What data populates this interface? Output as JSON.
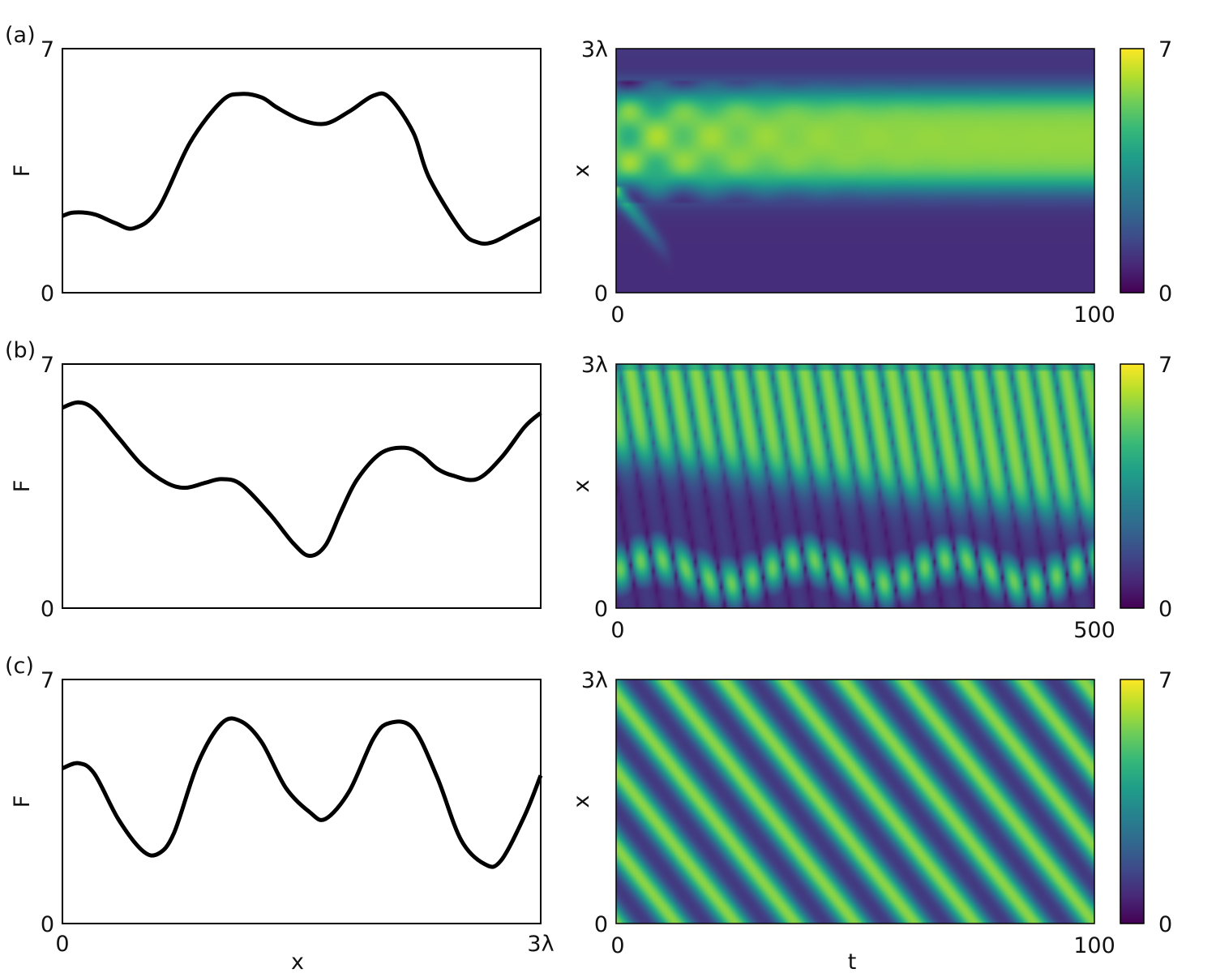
{
  "colormap": {
    "name": "viridis",
    "min": 0,
    "max": 7
  },
  "colors": {
    "line": "#000000",
    "frame": "#000000"
  },
  "chart_data": [
    {
      "id": "a-profile",
      "panel_label": "(a)",
      "type": "line",
      "xlabel": "",
      "ylabel": "F",
      "ylim": [
        0,
        7
      ],
      "x_ticks": [
        "",
        ""
      ],
      "y_ticks": [
        "0",
        "7"
      ],
      "x_unit": "lambda",
      "xlim": [
        0,
        3
      ],
      "series": [
        {
          "x": [
            0,
            0.07,
            0.2,
            0.33,
            0.45,
            0.6,
            0.8,
            1.0,
            1.12,
            1.25,
            1.35,
            1.5,
            1.65,
            1.8,
            1.95,
            2.05,
            2.2,
            2.3,
            2.5,
            2.6,
            2.7,
            2.85,
            3.0
          ],
          "y": [
            2.2,
            2.3,
            2.25,
            2.0,
            1.85,
            2.4,
            4.3,
            5.5,
            5.7,
            5.6,
            5.3,
            4.95,
            4.85,
            5.2,
            5.65,
            5.6,
            4.6,
            3.3,
            1.8,
            1.45,
            1.45,
            1.8,
            2.15
          ]
        }
      ]
    },
    {
      "id": "a-kymo",
      "type": "heatmap",
      "xlabel": "",
      "ylabel": "x",
      "x_ticks": [
        "0",
        "100"
      ],
      "y_ticks": [
        "0",
        "3λ"
      ],
      "xlim": [
        0,
        100
      ],
      "colorbar_ticks": [
        "0",
        "7"
      ],
      "zlim": [
        0,
        7
      ],
      "pattern": "steady-band",
      "band": {
        "low": 1.3,
        "high": 2.45,
        "inside": 5.9,
        "outside": 0.9,
        "transient_until": 40
      }
    },
    {
      "id": "b-profile",
      "panel_label": "(b)",
      "type": "line",
      "xlabel": "",
      "ylabel": "F",
      "ylim": [
        0,
        7
      ],
      "x_ticks": [
        "",
        ""
      ],
      "y_ticks": [
        "0",
        "7"
      ],
      "x_unit": "lambda",
      "xlim": [
        0,
        3
      ],
      "series": [
        {
          "x": [
            0,
            0.1,
            0.2,
            0.35,
            0.5,
            0.65,
            0.77,
            0.9,
            1.0,
            1.12,
            1.3,
            1.45,
            1.55,
            1.65,
            1.75,
            1.85,
            2.0,
            2.15,
            2.25,
            2.35,
            2.45,
            2.6,
            2.75,
            2.9,
            3.0
          ],
          "y": [
            5.75,
            5.9,
            5.7,
            4.9,
            4.1,
            3.6,
            3.45,
            3.6,
            3.7,
            3.55,
            2.7,
            1.85,
            1.5,
            1.8,
            2.8,
            3.7,
            4.45,
            4.6,
            4.4,
            4.0,
            3.8,
            3.7,
            4.3,
            5.2,
            5.6
          ]
        }
      ]
    },
    {
      "id": "b-kymo",
      "type": "heatmap",
      "xlabel": "",
      "ylabel": "x",
      "x_ticks": [
        "0",
        "500"
      ],
      "y_ticks": [
        "0",
        "3λ"
      ],
      "xlim": [
        0,
        500
      ],
      "colorbar_ticks": [
        "0",
        "7"
      ],
      "zlim": [
        0,
        7
      ],
      "pattern": "drifting-stripes",
      "stripe_count": 22
    },
    {
      "id": "c-profile",
      "panel_label": "(c)",
      "type": "line",
      "xlabel": "x",
      "ylabel": "F",
      "ylim": [
        0,
        7
      ],
      "x_ticks": [
        "0",
        "3λ"
      ],
      "y_ticks": [
        "0",
        "7"
      ],
      "x_unit": "lambda",
      "xlim": [
        0,
        3
      ],
      "series": [
        {
          "x": [
            0,
            0.1,
            0.2,
            0.35,
            0.5,
            0.6,
            0.7,
            0.85,
            1.0,
            1.12,
            1.25,
            1.4,
            1.55,
            1.65,
            1.8,
            1.95,
            2.05,
            2.2,
            2.35,
            2.5,
            2.65,
            2.75,
            2.9,
            3.0
          ],
          "y": [
            4.45,
            4.6,
            4.3,
            3.0,
            2.1,
            2.0,
            2.6,
            4.6,
            5.75,
            5.8,
            5.2,
            3.9,
            3.2,
            3.0,
            3.8,
            5.3,
            5.75,
            5.6,
            4.2,
            2.4,
            1.7,
            1.8,
            3.1,
            4.25
          ]
        }
      ]
    },
    {
      "id": "c-kymo",
      "type": "heatmap",
      "xlabel": "t",
      "ylabel": "x",
      "x_ticks": [
        "0",
        "100"
      ],
      "y_ticks": [
        "0",
        "3λ"
      ],
      "xlim": [
        0,
        100
      ],
      "colorbar_ticks": [
        "0",
        "7"
      ],
      "zlim": [
        0,
        7
      ],
      "pattern": "traveling-wave",
      "stripe_count": 8
    }
  ]
}
